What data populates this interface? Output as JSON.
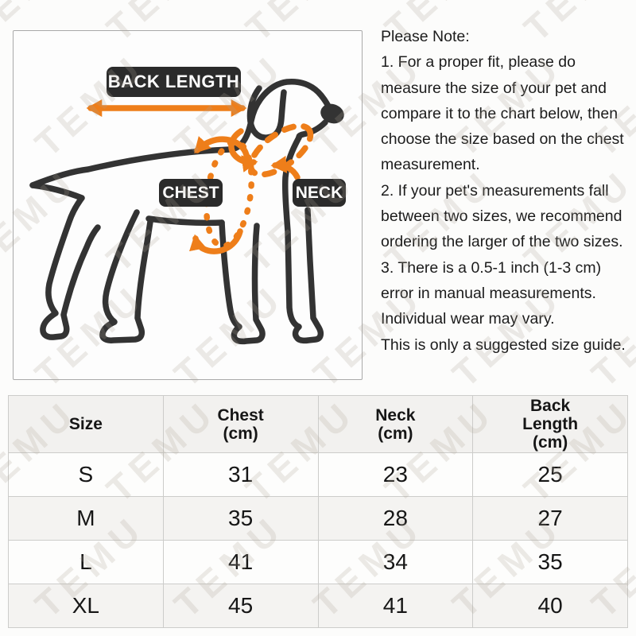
{
  "diagram": {
    "back_length_label": "BACK LENGTH",
    "chest_label": "CHEST",
    "neck_label": "NECK"
  },
  "notes": {
    "lines": [
      "Please Note:",
      "1. For a proper fit, please do",
      "measure the size of your pet and",
      "compare it to the chart below, then",
      "choose the size based on the chest",
      "measurement.",
      "2. If your pet's measurements fall",
      "between two sizes, we recommend",
      "ordering the larger of the two sizes.",
      "3. There is a 0.5-1 inch (1-3 cm)",
      "error in manual measurements.",
      "Individual wear may vary.",
      "This is only a suggested size guide."
    ]
  },
  "table": {
    "headers": [
      {
        "lines": [
          "Size"
        ]
      },
      {
        "lines": [
          "Chest",
          "(cm)"
        ]
      },
      {
        "lines": [
          "Neck",
          "(cm)"
        ]
      },
      {
        "lines": [
          "Back",
          "Length",
          "(cm)"
        ]
      }
    ],
    "rows": [
      {
        "size": "S",
        "chest": "31",
        "neck": "23",
        "back_length": "25"
      },
      {
        "size": "M",
        "chest": "35",
        "neck": "28",
        "back_length": "27"
      },
      {
        "size": "L",
        "chest": "41",
        "neck": "34",
        "back_length": "35"
      },
      {
        "size": "XL",
        "chest": "45",
        "neck": "41",
        "back_length": "40"
      }
    ]
  },
  "watermark": {
    "text": "TEMU"
  },
  "colors": {
    "accent": "#ee7e1a",
    "ink": "#333333",
    "label_bg": "#2b2b2b"
  }
}
